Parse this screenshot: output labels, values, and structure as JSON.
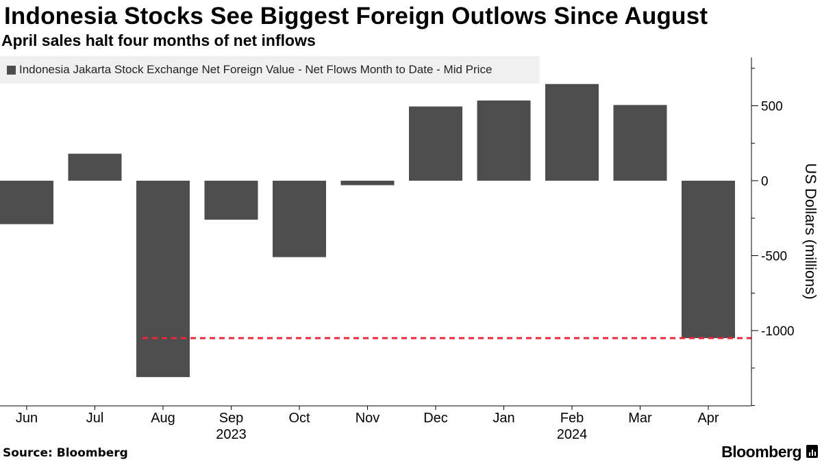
{
  "title": "Indonesia Stocks See Biggest Foreign Outlows Since August",
  "subtitle": "April sales halt four months of net inflows",
  "source": "Source: Bloomberg",
  "brand": "Bloomberg",
  "colors": {
    "bar": "#4d4d4d",
    "reference_line": "#e8283c",
    "legend_bg": "#f0f0f0"
  },
  "chart_data": {
    "type": "bar",
    "title": "Indonesia Stocks See Biggest Foreign Outlows Since August",
    "subtitle": "April sales halt four months of net inflows",
    "legend": [
      "Indonesia Jakarta Stock Exchange Net Foreign Value - Net Flows Month to Date - Mid Price"
    ],
    "categories": [
      "Jun",
      "Jul",
      "Aug",
      "Sep",
      "Oct",
      "Nov",
      "Dec",
      "Jan",
      "Feb",
      "Mar",
      "Apr"
    ],
    "year_labels": [
      {
        "label": "2023",
        "category": "Sep"
      },
      {
        "label": "2024",
        "category": "Feb"
      }
    ],
    "series": [
      {
        "name": "Indonesia Jakarta Stock Exchange Net Foreign Value - Net Flows Month to Date - Mid Price",
        "values": [
          -290,
          180,
          -1310,
          -260,
          -510,
          -30,
          495,
          535,
          645,
          505,
          -1050
        ]
      }
    ],
    "reference_line": {
      "value": -1050,
      "from_category": "Aug",
      "to_category": "Apr",
      "style": "dashed"
    },
    "ylabel": "US Dollars (millions)",
    "xlabel": "",
    "y_ticks": [
      500,
      0,
      -500,
      -1000
    ],
    "ylim": [
      -1500,
      820
    ],
    "y_axis_side": "right",
    "grid": false
  }
}
